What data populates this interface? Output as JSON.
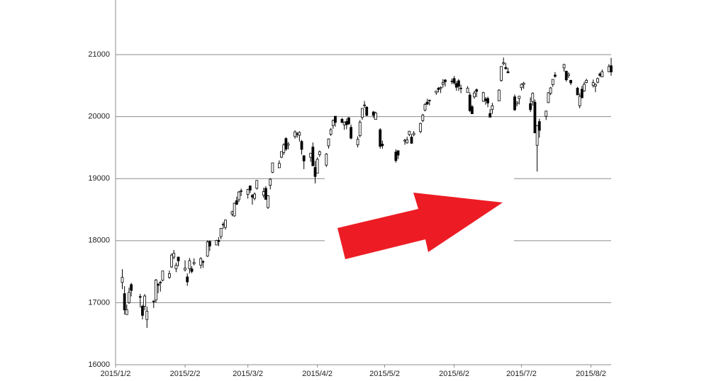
{
  "chart_data": {
    "type": "candlestick",
    "x": [
      "2015/1/5",
      "2015/1/6",
      "2015/1/7",
      "2015/1/8",
      "2015/1/9",
      "2015/1/13",
      "2015/1/14",
      "2015/1/15",
      "2015/1/16",
      "2015/1/19",
      "2015/1/20",
      "2015/1/21",
      "2015/1/22",
      "2015/1/23",
      "2015/1/26",
      "2015/1/27",
      "2015/1/28",
      "2015/1/29",
      "2015/1/30",
      "2015/2/2",
      "2015/2/3",
      "2015/2/4",
      "2015/2/5",
      "2015/2/6",
      "2015/2/9",
      "2015/2/10",
      "2015/2/12",
      "2015/2/13",
      "2015/2/16",
      "2015/2/17",
      "2015/2/18",
      "2015/2/19",
      "2015/2/20",
      "2015/2/23",
      "2015/2/24",
      "2015/2/25",
      "2015/2/26",
      "2015/2/27",
      "2015/3/2",
      "2015/3/3",
      "2015/3/4",
      "2015/3/5",
      "2015/3/6",
      "2015/3/9",
      "2015/3/10",
      "2015/3/11",
      "2015/3/12",
      "2015/3/13",
      "2015/3/16",
      "2015/3/17",
      "2015/3/18",
      "2015/3/19",
      "2015/3/20",
      "2015/3/23",
      "2015/3/24",
      "2015/3/25",
      "2015/3/26",
      "2015/3/27",
      "2015/3/30",
      "2015/3/31",
      "2015/4/1",
      "2015/4/2",
      "2015/4/3",
      "2015/4/6",
      "2015/4/7",
      "2015/4/8",
      "2015/4/9",
      "2015/4/10",
      "2015/4/13",
      "2015/4/14",
      "2015/4/15",
      "2015/4/16",
      "2015/4/17",
      "2015/4/20",
      "2015/4/21",
      "2015/4/22",
      "2015/4/23",
      "2015/4/24",
      "2015/4/27",
      "2015/4/28",
      "2015/4/30",
      "2015/5/1",
      "2015/5/7",
      "2015/5/8",
      "2015/5/11",
      "2015/5/12",
      "2015/5/13",
      "2015/5/14",
      "2015/5/15",
      "2015/5/18",
      "2015/5/19",
      "2015/5/20",
      "2015/5/21",
      "2015/5/22",
      "2015/5/25",
      "2015/5/26",
      "2015/5/27",
      "2015/5/28",
      "2015/5/29",
      "2015/6/1",
      "2015/6/2",
      "2015/6/3",
      "2015/6/4",
      "2015/6/5",
      "2015/6/8",
      "2015/6/9",
      "2015/6/10",
      "2015/6/11",
      "2015/6/12",
      "2015/6/15",
      "2015/6/16",
      "2015/6/17",
      "2015/6/18",
      "2015/6/19",
      "2015/6/22",
      "2015/6/23",
      "2015/6/24",
      "2015/6/25",
      "2015/6/26",
      "2015/6/29",
      "2015/6/30",
      "2015/7/1",
      "2015/7/2",
      "2015/7/3",
      "2015/7/6",
      "2015/7/7",
      "2015/7/8",
      "2015/7/9",
      "2015/7/10",
      "2015/7/13",
      "2015/7/14",
      "2015/7/15",
      "2015/7/16",
      "2015/7/17",
      "2015/7/21",
      "2015/7/22",
      "2015/7/23",
      "2015/7/24",
      "2015/7/27",
      "2015/7/28",
      "2015/7/29",
      "2015/7/30",
      "2015/7/31",
      "2015/8/3",
      "2015/8/4",
      "2015/8/5",
      "2015/8/6",
      "2015/8/7",
      "2015/8/10",
      "2015/8/11"
    ],
    "open": [
      17325,
      17147,
      16808,
      17000,
      17292,
      17099,
      16943,
      16943,
      16729,
      17026,
      17042,
      17303,
      17318,
      17361,
      17407,
      17576,
      17735,
      17546,
      17736,
      17529,
      17416,
      17547,
      17545,
      17629,
      17606,
      17663,
      17750,
      17988,
      17930,
      18003,
      18066,
      18253,
      18214,
      18430,
      18399,
      18645,
      18661,
      18803,
      18747,
      18883,
      18729,
      18682,
      18843,
      18733,
      18844,
      18534,
      18892,
      19101,
      19175,
      19345,
      19421,
      19647,
      19540,
      19678,
      19723,
      19699,
      19600,
      19371,
      19344,
      19509,
      19180,
      19086,
      19386,
      19218,
      19528,
      19716,
      19857,
      20006,
      19957,
      19868,
      19920,
      19981,
      19827,
      19544,
      19694,
      19987,
      20179,
      20152,
      20075,
      19954,
      19788,
      19556,
      19429,
      19451,
      19606,
      19576,
      19711,
      19670,
      19709,
      19759,
      19935,
      20106,
      20233,
      20264,
      20385,
      20458,
      20454,
      20521,
      20590,
      20572,
      20614,
      20532,
      20578,
      20453,
      20390,
      20349,
      20160,
      20318,
      20434,
      20246,
      20284,
      20293,
      20050,
      20113,
      20253,
      20582,
      20853,
      20791,
      20724,
      20319,
      20208,
      20291,
      20467,
      20519,
      20210,
      20243,
      20232,
      19537,
      19920,
      20005,
      20226,
      20375,
      20515,
      20670,
      20785,
      20734,
      20662,
      20586,
      20459,
      20175,
      20442,
      20414,
      20551,
      20501,
      20491,
      20554,
      20689,
      20641,
      20723,
      20820
    ],
    "high": [
      17540,
      17267,
      16970,
      17243,
      17320,
      17141,
      16968,
      17139,
      16938,
      17039,
      17382,
      17308,
      17352,
      17511,
      17519,
      17795,
      17850,
      17646,
      17736,
      17684,
      17473,
      17722,
      17585,
      17713,
      17734,
      17688,
      18006,
      18004,
      18014,
      18055,
      18201,
      18299,
      18338,
      18481,
      18613,
      18709,
      18801,
      18839,
      18836,
      18890,
      18752,
      18778,
      18975,
      18854,
      18880,
      18735,
      19007,
      19254,
      19295,
      19437,
      19572,
      19668,
      19590,
      19778,
      19752,
      19764,
      19623,
      19372,
      19412,
      19583,
      19286,
      19344,
      19453,
      19411,
      19648,
      19817,
      19956,
      20006,
      19980,
      19921,
      19969,
      19993,
      19873,
      19682,
      19944,
      20133,
      20252,
      20169,
      20092,
      20080,
      19815,
      19612,
      19474,
      19451,
      19642,
      19677,
      19770,
      19717,
      19767,
      19902,
      20044,
      20219,
      20288,
      20274,
      20413,
      20476,
      20488,
      20605,
      20605,
      20614,
      20655,
      20573,
      20605,
      20515,
      20491,
      20392,
      20186,
      20418,
      20453,
      20400,
      20316,
      20322,
      20121,
      20223,
      20440,
      20809,
      20952,
      20868,
      20787,
      20357,
      20246,
      20333,
      20534,
      20560,
      20310,
      20390,
      20275,
      19865,
      19966,
      20097,
      20394,
      20478,
      20600,
      20718,
      20850,
      20734,
      20713,
      20591,
      20480,
      20376,
      20496,
      20561,
      20610,
      20598,
      20536,
      20629,
      20712,
      20759,
      20846,
      20946
    ],
    "low": [
      17219,
      16808,
      16808,
      16983,
      17102,
      16921,
      16730,
      16878,
      16592,
      16914,
      17000,
      17152,
      17179,
      17344,
      17384,
      17561,
      17700,
      17492,
      17585,
      17503,
      17271,
      17472,
      17473,
      17602,
      17549,
      17560,
      17738,
      17832,
      17930,
      17912,
      18024,
      18191,
      18177,
      18394,
      18385,
      18585,
      18623,
      18718,
      18676,
      18767,
      18580,
      18652,
      18823,
      18691,
      18665,
      18511,
      18826,
      19090,
      19174,
      19331,
      19383,
      19448,
      19472,
      19644,
      19659,
      19599,
      19388,
      19152,
      19271,
      19206,
      18923,
      19086,
      19350,
      19189,
      19484,
      19689,
      19803,
      19838,
      19897,
      19787,
      19796,
      19864,
      19634,
      19504,
      19666,
      19948,
      20136,
      20007,
      19976,
      19954,
      19483,
      19484,
      19258,
      19316,
      19545,
      19564,
      19685,
      19563,
      19683,
      19732,
      19911,
      20084,
      20188,
      20179,
      20351,
      20392,
      20380,
      20468,
      20483,
      20522,
      20516,
      20416,
      20414,
      20377,
      20390,
      20070,
      20046,
      20288,
      20316,
      20239,
      20192,
      20152,
      19990,
      20043,
      20253,
      20563,
      20826,
      20758,
      20704,
      20093,
      20165,
      20196,
      20420,
      20448,
      20074,
      20176,
      19737,
      19115,
      19660,
      19946,
      20218,
      20349,
      20480,
      20625,
      20727,
      20564,
      20621,
      20507,
      20350,
      20133,
      20302,
      20401,
      20538,
      20470,
      20394,
      20538,
      20639,
      20641,
      20723,
      20660
    ],
    "close": [
      17408,
      16883,
      16885,
      17167,
      17197,
      17087,
      16795,
      17108,
      16864,
      17014,
      17366,
      17280,
      17329,
      17511,
      17468,
      17768,
      17795,
      17606,
      17674,
      17558,
      17335,
      17678,
      17504,
      17648,
      17711,
      17652,
      17979,
      17913,
      18004,
      17987,
      18199,
      18264,
      18332,
      18466,
      18603,
      18585,
      18785,
      18797,
      18826,
      18815,
      18703,
      18751,
      18971,
      18790,
      18665,
      18723,
      18991,
      19254,
      19246,
      19437,
      19544,
      19476,
      19560,
      19754,
      19714,
      19746,
      19471,
      19285,
      19411,
      19206,
      19034,
      19312,
      19435,
      19397,
      19640,
      19789,
      19937,
      19907,
      19905,
      19908,
      19869,
      19885,
      19652,
      19634,
      19909,
      20133,
      20187,
      20020,
      20020,
      20058,
      19520,
      19531,
      19291,
      19379,
      19620,
      19624,
      19764,
      19570,
      19732,
      19890,
      20026,
      20196,
      20202,
      20264,
      20413,
      20437,
      20472,
      20551,
      20563,
      20569,
      20543,
      20473,
      20488,
      20460,
      20457,
      20096,
      20046,
      20382,
      20407,
      20387,
      20257,
      20219,
      19990,
      20174,
      20428,
      20809,
      20868,
      20772,
      20706,
      20109,
      20235,
      20329,
      20522,
      20539,
      20112,
      20376,
      19737,
      19855,
      19779,
      20089,
      20385,
      20463,
      20600,
      20650,
      20841,
      20593,
      20683,
      20544,
      20350,
      20328,
      20303,
      20522,
      20585,
      20548,
      20520,
      20614,
      20664,
      20724,
      20808,
      20720
    ],
    "xlim": [
      "2015/1/2",
      "2015/8/11"
    ],
    "xticks": [
      "2015/1/2",
      "2015/2/2",
      "2015/3/2",
      "2015/4/2",
      "2015/5/2",
      "2015/6/2",
      "2015/7/2",
      "2015/8/2"
    ],
    "ylim": [
      16000,
      21880
    ],
    "yticks": [
      16000,
      17000,
      18000,
      19000,
      20000,
      21000
    ],
    "grid": true,
    "color": "#000000"
  }
}
